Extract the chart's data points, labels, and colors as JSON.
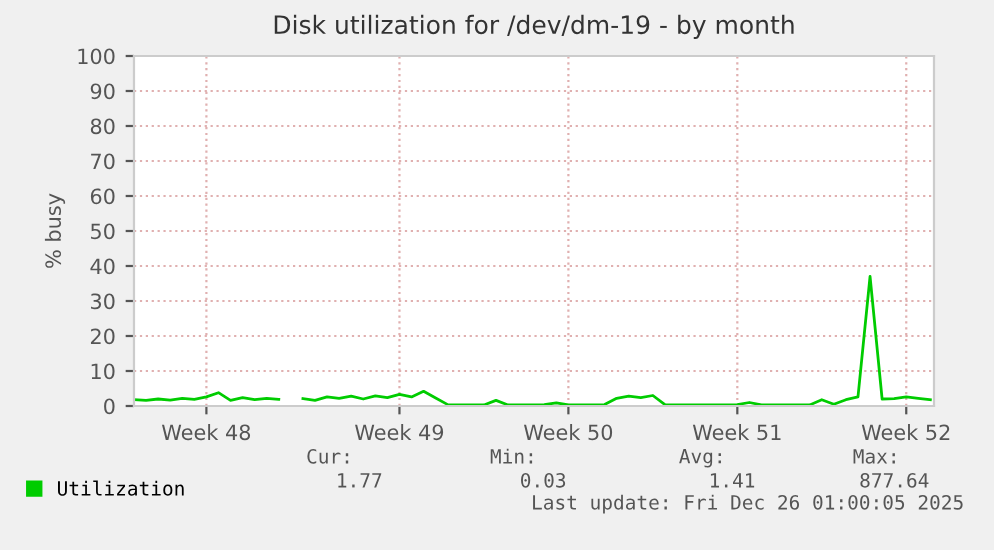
{
  "chart_data": {
    "type": "line",
    "title": "Disk utilization for /dev/dm-19 - by month",
    "ylabel": "% busy",
    "categories": [
      null,
      null,
      null,
      null,
      null,
      null,
      "Week 48",
      null,
      null,
      null,
      null,
      null,
      null,
      null,
      null,
      null,
      null,
      null,
      null,
      null,
      null,
      null,
      "Week 49",
      null,
      null,
      null,
      null,
      null,
      null,
      null,
      null,
      null,
      null,
      null,
      null,
      null,
      "Week 50",
      null,
      null,
      null,
      null,
      null,
      null,
      null,
      null,
      null,
      null,
      null,
      null,
      null,
      "Week 51",
      null,
      null,
      null,
      null,
      null,
      null,
      null,
      null,
      null,
      null,
      null,
      null,
      null,
      "Week 52",
      null,
      null
    ],
    "series": [
      {
        "name": "Utilization",
        "color": "#00cc00",
        "values": [
          1.8,
          1.6,
          2.0,
          1.7,
          2.2,
          1.9,
          2.6,
          3.8,
          1.6,
          2.4,
          1.8,
          2.2,
          1.9,
          null,
          2.1,
          1.6,
          2.6,
          2.2,
          2.8,
          2.0,
          2.9,
          2.4,
          3.3,
          2.6,
          4.2,
          2.3,
          0.4,
          0.3,
          0.3,
          0.3,
          1.6,
          0.3,
          0.3,
          0.3,
          0.4,
          0.9,
          0.3,
          0.3,
          0.3,
          0.4,
          2.2,
          2.8,
          2.4,
          3.0,
          0.4,
          0.3,
          0.3,
          0.3,
          0.3,
          0.3,
          0.4,
          1.0,
          0.3,
          0.3,
          0.3,
          0.3,
          0.3,
          1.8,
          0.5,
          1.8,
          2.6,
          37,
          2.0,
          2.1,
          2.6,
          2.2,
          1.8
        ]
      }
    ],
    "ylim": [
      0,
      100
    ],
    "yticks": [
      0,
      10,
      20,
      30,
      40,
      50,
      60,
      70,
      80,
      90,
      100
    ],
    "grid": true,
    "legend": "bottom left",
    "annotations": [
      "Cur:",
      "Min:",
      "Avg:",
      "Max:",
      "1.77",
      "0.03",
      "1.41",
      "877.64",
      "Last update: Fri Dec 26 01:00:05 2025"
    ]
  }
}
